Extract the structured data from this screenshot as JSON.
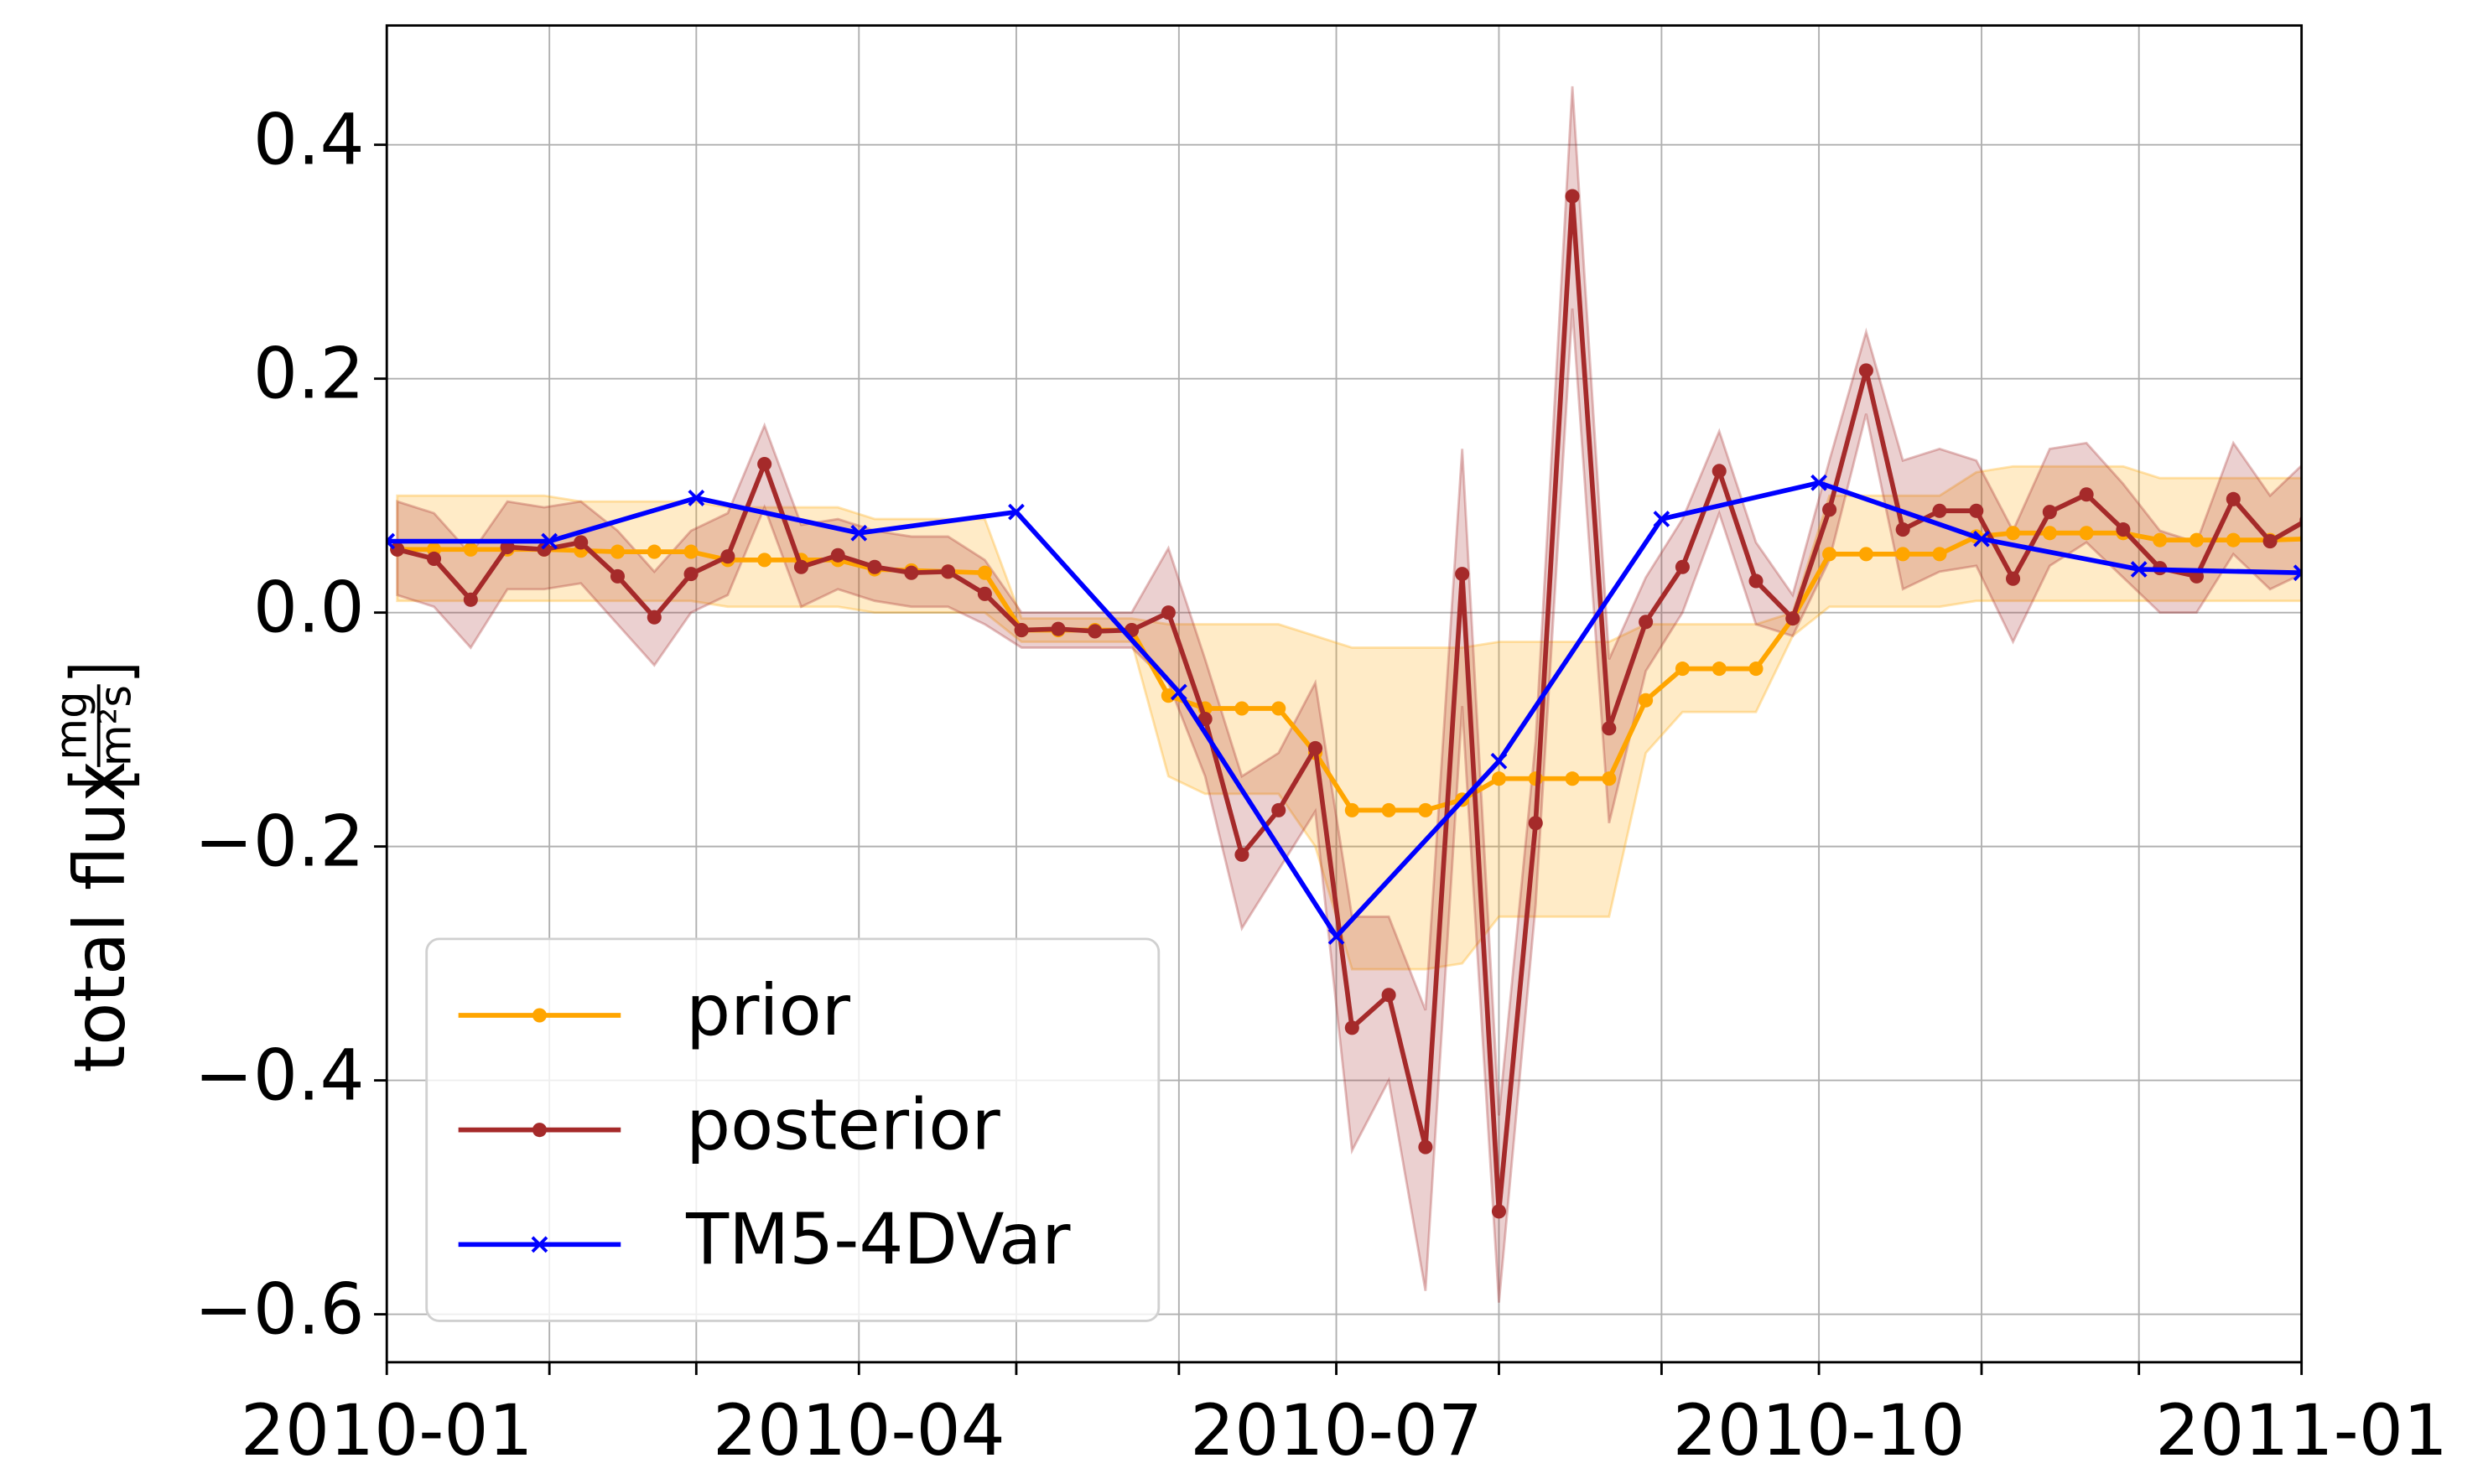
{
  "chart_data": {
    "type": "line",
    "ylabel": "total flux",
    "ylabel_unit": {
      "numerator": "mg",
      "denominator": "m²s"
    },
    "xlim": [
      "2010-01-01",
      "2011-01-01"
    ],
    "xticks": [
      "2010-01",
      {
        "value": "2010-02",
        "label": null
      },
      {
        "value": "2010-03",
        "label": null
      },
      "2010-04",
      {
        "value": "2010-05",
        "label": null
      },
      {
        "value": "2010-06",
        "label": null
      },
      "2010-07",
      {
        "value": "2010-08",
        "label": null
      },
      {
        "value": "2010-09",
        "label": null
      },
      "2010-10",
      {
        "value": "2010-11",
        "label": null
      },
      {
        "value": "2010-12",
        "label": null
      },
      "2011-01"
    ],
    "ylim": [
      -0.641,
      0.502
    ],
    "yticks": [
      {
        "value": -0.6,
        "label": "−0.6"
      },
      {
        "value": -0.4,
        "label": "−0.4"
      },
      {
        "value": -0.2,
        "label": "−0.2"
      },
      {
        "value": 0.0,
        "label": "0.0"
      },
      {
        "value": 0.2,
        "label": "0.2"
      },
      {
        "value": 0.4,
        "label": "0.4"
      }
    ],
    "grid": true,
    "legend": "lower left",
    "series": [
      {
        "name": "prior",
        "color": "#ffa500",
        "marker": "o",
        "x": [
          "2010-01-03",
          "2010-01-10",
          "2010-01-17",
          "2010-01-24",
          "2010-01-31",
          "2010-02-07",
          "2010-02-14",
          "2010-02-21",
          "2010-02-28",
          "2010-03-07",
          "2010-03-14",
          "2010-03-21",
          "2010-03-28",
          "2010-04-04",
          "2010-04-11",
          "2010-04-18",
          "2010-04-25",
          "2010-05-02",
          "2010-05-09",
          "2010-05-16",
          "2010-05-23",
          "2010-05-30",
          "2010-06-06",
          "2010-06-13",
          "2010-06-20",
          "2010-06-27",
          "2010-07-04",
          "2010-07-11",
          "2010-07-18",
          "2010-07-25",
          "2010-08-01",
          "2010-08-08",
          "2010-08-15",
          "2010-08-22",
          "2010-08-29",
          "2010-09-05",
          "2010-09-12",
          "2010-09-19",
          "2010-09-26",
          "2010-10-03",
          "2010-10-10",
          "2010-10-17",
          "2010-10-24",
          "2010-10-31",
          "2010-11-07",
          "2010-11-14",
          "2010-11-21",
          "2010-11-28",
          "2010-12-05",
          "2010-12-12",
          "2010-12-19",
          "2010-12-26",
          "2011-01-02"
        ],
        "values": [
          0.054,
          0.054,
          0.054,
          0.054,
          0.054,
          0.053,
          0.052,
          0.052,
          0.052,
          0.045,
          0.045,
          0.045,
          0.045,
          0.037,
          0.036,
          0.035,
          0.034,
          -0.015,
          -0.015,
          -0.015,
          -0.015,
          -0.071,
          -0.082,
          -0.082,
          -0.082,
          -0.12,
          -0.169,
          -0.169,
          -0.169,
          -0.16,
          -0.142,
          -0.142,
          -0.142,
          -0.142,
          -0.075,
          -0.048,
          -0.048,
          -0.048,
          -0.005,
          0.05,
          0.05,
          0.05,
          0.05,
          0.065,
          0.068,
          0.068,
          0.068,
          0.068,
          0.062,
          0.062,
          0.062,
          0.062,
          0.063
        ],
        "upper": [
          0.1,
          0.1,
          0.1,
          0.1,
          0.1,
          0.095,
          0.095,
          0.095,
          0.095,
          0.09,
          0.09,
          0.09,
          0.09,
          0.08,
          0.08,
          0.08,
          0.08,
          -0.005,
          -0.005,
          -0.005,
          -0.005,
          -0.01,
          -0.01,
          -0.01,
          -0.01,
          -0.02,
          -0.03,
          -0.03,
          -0.03,
          -0.03,
          -0.025,
          -0.025,
          -0.025,
          -0.025,
          -0.01,
          -0.01,
          -0.01,
          -0.01,
          0.0,
          0.1,
          0.1,
          0.1,
          0.1,
          0.12,
          0.125,
          0.125,
          0.125,
          0.125,
          0.115,
          0.115,
          0.115,
          0.115,
          0.115
        ],
        "lower": [
          0.01,
          0.01,
          0.01,
          0.01,
          0.01,
          0.01,
          0.01,
          0.01,
          0.01,
          0.005,
          0.005,
          0.005,
          0.005,
          0.0,
          0.0,
          0.0,
          0.0,
          -0.025,
          -0.025,
          -0.025,
          -0.025,
          -0.14,
          -0.155,
          -0.155,
          -0.155,
          -0.2,
          -0.305,
          -0.305,
          -0.305,
          -0.3,
          -0.26,
          -0.26,
          -0.26,
          -0.26,
          -0.12,
          -0.085,
          -0.085,
          -0.085,
          -0.02,
          0.005,
          0.005,
          0.005,
          0.005,
          0.01,
          0.01,
          0.01,
          0.01,
          0.01,
          0.01,
          0.01,
          0.01,
          0.01,
          0.01
        ]
      },
      {
        "name": "posterior",
        "color": "#a52a2a",
        "marker": "o",
        "x": [
          "2010-01-03",
          "2010-01-10",
          "2010-01-17",
          "2010-01-24",
          "2010-01-31",
          "2010-02-07",
          "2010-02-14",
          "2010-02-21",
          "2010-02-28",
          "2010-03-07",
          "2010-03-14",
          "2010-03-21",
          "2010-03-28",
          "2010-04-04",
          "2010-04-11",
          "2010-04-18",
          "2010-04-25",
          "2010-05-02",
          "2010-05-09",
          "2010-05-16",
          "2010-05-23",
          "2010-05-30",
          "2010-06-06",
          "2010-06-13",
          "2010-06-20",
          "2010-06-27",
          "2010-07-04",
          "2010-07-11",
          "2010-07-18",
          "2010-07-25",
          "2010-08-01",
          "2010-08-08",
          "2010-08-15",
          "2010-08-22",
          "2010-08-29",
          "2010-09-05",
          "2010-09-12",
          "2010-09-19",
          "2010-09-26",
          "2010-10-03",
          "2010-10-10",
          "2010-10-17",
          "2010-10-24",
          "2010-10-31",
          "2010-11-07",
          "2010-11-14",
          "2010-11-21",
          "2010-11-28",
          "2010-12-05",
          "2010-12-12",
          "2010-12-19",
          "2010-12-26",
          "2011-01-02"
        ],
        "values": [
          0.054,
          0.046,
          0.011,
          0.056,
          0.054,
          0.06,
          0.031,
          -0.004,
          0.033,
          0.048,
          0.127,
          0.039,
          0.049,
          0.039,
          0.034,
          0.035,
          0.016,
          -0.015,
          -0.014,
          -0.016,
          -0.015,
          0.0,
          -0.091,
          -0.207,
          -0.169,
          -0.116,
          -0.355,
          -0.327,
          -0.457,
          0.033,
          -0.512,
          -0.18,
          0.356,
          -0.099,
          -0.008,
          0.039,
          0.121,
          0.027,
          -0.005,
          0.088,
          0.207,
          0.071,
          0.087,
          0.087,
          0.029,
          0.086,
          0.101,
          0.071,
          0.038,
          0.031,
          0.097,
          0.061,
          0.079
        ],
        "upper": [
          0.095,
          0.085,
          0.05,
          0.095,
          0.09,
          0.095,
          0.07,
          0.035,
          0.07,
          0.085,
          0.16,
          0.075,
          0.08,
          0.07,
          0.065,
          0.065,
          0.045,
          0.0,
          0.0,
          0.0,
          0.0,
          0.055,
          -0.04,
          -0.14,
          -0.12,
          -0.06,
          -0.26,
          -0.26,
          -0.34,
          0.14,
          -0.43,
          -0.11,
          0.45,
          -0.04,
          0.03,
          0.08,
          0.155,
          0.06,
          0.015,
          0.13,
          0.24,
          0.13,
          0.14,
          0.13,
          0.07,
          0.14,
          0.145,
          0.11,
          0.07,
          0.06,
          0.145,
          0.1,
          0.13
        ],
        "lower": [
          0.015,
          0.005,
          -0.03,
          0.02,
          0.02,
          0.025,
          -0.01,
          -0.045,
          0.0,
          0.015,
          0.09,
          0.005,
          0.02,
          0.01,
          0.005,
          0.005,
          -0.01,
          -0.03,
          -0.03,
          -0.03,
          -0.03,
          -0.06,
          -0.14,
          -0.27,
          -0.22,
          -0.17,
          -0.46,
          -0.4,
          -0.58,
          -0.08,
          -0.59,
          -0.25,
          0.26,
          -0.18,
          -0.05,
          0.0,
          0.085,
          -0.01,
          -0.02,
          0.045,
          0.17,
          0.02,
          0.035,
          0.04,
          -0.025,
          0.04,
          0.06,
          0.03,
          0.0,
          0.0,
          0.05,
          0.02,
          0.035
        ]
      },
      {
        "name": "TM5-4DVar",
        "color": "#0000ff",
        "marker": "x",
        "x": [
          "2010-01-01",
          "2010-02-01",
          "2010-03-01",
          "2010-04-01",
          "2010-05-01",
          "2010-06-01",
          "2010-07-01",
          "2010-08-01",
          "2010-09-01",
          "2010-10-01",
          "2010-11-01",
          "2010-12-01",
          "2011-01-01"
        ],
        "values": [
          0.061,
          0.061,
          0.098,
          0.068,
          0.086,
          -0.068,
          -0.277,
          -0.127,
          0.08,
          0.111,
          0.063,
          0.037,
          0.034
        ]
      }
    ]
  }
}
